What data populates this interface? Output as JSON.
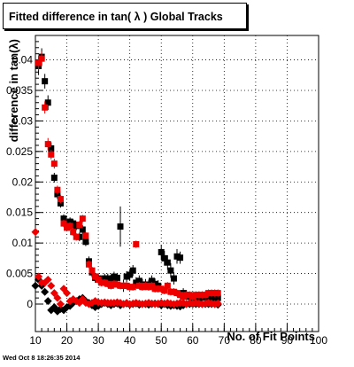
{
  "title": "Fitted difference in tan( λ )  Global Tracks",
  "timestamp": "Wed Oct  8 18:26:35 2014",
  "chart_data": {
    "type": "scatter",
    "title": "Fitted difference in tan( λ )  Global Tracks",
    "xlabel": "No. of Fit Points",
    "ylabel": "difference in tan(λ)",
    "xlim": [
      10,
      100
    ],
    "ylim": [
      -0.0045,
      0.044
    ],
    "x_ticks": [
      10,
      20,
      30,
      40,
      50,
      60,
      70,
      80,
      90,
      100
    ],
    "y_ticks": [
      0,
      0.005,
      0.01,
      0.015,
      0.02,
      0.025,
      0.03,
      0.035,
      0.04
    ],
    "y_tick_labels": [
      "0",
      "0.005",
      "0.01",
      "0.015",
      "0.02",
      "0.025",
      "0.03",
      "0.035",
      "0.04"
    ],
    "grid": true,
    "series": [
      {
        "color": "#000000",
        "marker": "square",
        "points": [
          [
            11,
            0.039,
            0.0015
          ],
          [
            12,
            0.0405,
            0.0014
          ],
          [
            13,
            0.0365,
            0.0012
          ],
          [
            14,
            0.033,
            0.0012
          ],
          [
            15,
            0.0255,
            0.001
          ],
          [
            16,
            0.0207,
            0.0008
          ],
          [
            17,
            0.018,
            0.0008
          ],
          [
            18,
            0.0165,
            0.0007
          ],
          [
            19,
            0.014,
            0.0007
          ],
          [
            20,
            0.013,
            0.0007
          ],
          [
            21,
            0.0135,
            0.0007
          ],
          [
            22,
            0.0132,
            0.0007
          ],
          [
            23,
            0.0128,
            0.0007
          ],
          [
            24,
            0.011,
            0.0007
          ],
          [
            25,
            0.0122,
            0.0007
          ],
          [
            26,
            0.0102,
            0.0007
          ],
          [
            27,
            0.007,
            0.0008
          ],
          [
            28,
            0.0052,
            0.0008
          ],
          [
            29,
            0.0043,
            0.0008
          ],
          [
            30,
            0.0042,
            0.0008
          ],
          [
            31,
            0.0038,
            0.0008
          ],
          [
            32,
            0.0042,
            0.0008
          ],
          [
            33,
            0.0042,
            0.0008
          ],
          [
            34,
            0.004,
            0.0008
          ],
          [
            35,
            0.0045,
            0.0008
          ],
          [
            36,
            0.0043,
            0.0008
          ],
          [
            37,
            0.0127,
            0.0033
          ],
          [
            38,
            0.003,
            0.001
          ],
          [
            39,
            0.0045,
            0.0009
          ],
          [
            40,
            0.0048,
            0.0009
          ],
          [
            41,
            0.0055,
            0.0009
          ],
          [
            42,
            0.0035,
            0.0009
          ],
          [
            43,
            0.0038,
            0.0009
          ],
          [
            44,
            0.0032,
            0.0009
          ],
          [
            45,
            0.0032,
            0.0009
          ],
          [
            46,
            0.0031,
            0.0009
          ],
          [
            47,
            0.0038,
            0.0009
          ],
          [
            48,
            0.0033,
            0.0009
          ],
          [
            49,
            0.003,
            0.0009
          ],
          [
            50,
            0.0085,
            0.0012
          ],
          [
            51,
            0.0075,
            0.0012
          ],
          [
            52,
            0.0068,
            0.0012
          ],
          [
            53,
            0.0055,
            0.0012
          ],
          [
            54,
            0.0042,
            0.001
          ],
          [
            55,
            0.0078,
            0.0012
          ],
          [
            56,
            0.0076,
            0.001
          ],
          [
            57,
            0.0018,
            0.0008
          ],
          [
            58,
            0.0015,
            0.0008
          ],
          [
            59,
            0.0012,
            0.0008
          ],
          [
            60,
            0.001,
            0.0008
          ],
          [
            61,
            0.0012,
            0.0008
          ],
          [
            62,
            0.001,
            0.0008
          ],
          [
            63,
            0.0012,
            0.0008
          ],
          [
            64,
            0.0011,
            0.0008
          ],
          [
            65,
            0.0012,
            0.0008
          ],
          [
            66,
            0.001,
            0.0008
          ],
          [
            67,
            0.0012,
            0.0008
          ],
          [
            68,
            0.001,
            0.0008
          ]
        ]
      },
      {
        "color": "#ee0000",
        "marker": "square",
        "points": [
          [
            11,
            0.0395,
            0.0012
          ],
          [
            12,
            0.0402,
            0.0012
          ],
          [
            13,
            0.0322,
            0.001
          ],
          [
            14,
            0.0262,
            0.001
          ],
          [
            15,
            0.0245,
            0.0008
          ],
          [
            16,
            0.023,
            0.0008
          ],
          [
            17,
            0.0187,
            0.0007
          ],
          [
            18,
            0.0172,
            0.0007
          ],
          [
            19,
            0.0132,
            0.0006
          ],
          [
            20,
            0.0125,
            0.0006
          ],
          [
            21,
            0.0128,
            0.0006
          ],
          [
            22,
            0.0118,
            0.0006
          ],
          [
            23,
            0.011,
            0.0006
          ],
          [
            24,
            0.013,
            0.0006
          ],
          [
            25,
            0.014,
            0.0006
          ],
          [
            26,
            0.0112,
            0.0006
          ],
          [
            27,
            0.0065,
            0.0006
          ],
          [
            28,
            0.0055,
            0.0006
          ],
          [
            29,
            0.0045,
            0.0006
          ],
          [
            30,
            0.004,
            0.0006
          ],
          [
            31,
            0.0035,
            0.0006
          ],
          [
            32,
            0.0035,
            0.0006
          ],
          [
            33,
            0.0033,
            0.0006
          ],
          [
            34,
            0.003,
            0.0006
          ],
          [
            35,
            0.0033,
            0.0006
          ],
          [
            36,
            0.0032,
            0.0006
          ],
          [
            37,
            0.003,
            0.0006
          ],
          [
            38,
            0.003,
            0.0006
          ],
          [
            39,
            0.003,
            0.0006
          ],
          [
            40,
            0.0028,
            0.0006
          ],
          [
            41,
            0.0028,
            0.0006
          ],
          [
            42,
            0.0098,
            0.0006
          ],
          [
            43,
            0.003,
            0.0006
          ],
          [
            44,
            0.0028,
            0.0006
          ],
          [
            45,
            0.003,
            0.0006
          ],
          [
            46,
            0.0028,
            0.0006
          ],
          [
            47,
            0.003,
            0.0006
          ],
          [
            48,
            0.0025,
            0.0006
          ],
          [
            49,
            0.0025,
            0.0006
          ],
          [
            50,
            0.0025,
            0.0006
          ],
          [
            51,
            0.0022,
            0.0006
          ],
          [
            52,
            0.003,
            0.0006
          ],
          [
            53,
            0.002,
            0.0006
          ],
          [
            54,
            0.002,
            0.0006
          ],
          [
            55,
            0.0018,
            0.0006
          ],
          [
            56,
            0.0015,
            0.0006
          ],
          [
            57,
            0.0012,
            0.0006
          ],
          [
            58,
            0.0015,
            0.0006
          ],
          [
            59,
            0.0015,
            0.0006
          ],
          [
            60,
            0.0012,
            0.0006
          ],
          [
            61,
            0.0015,
            0.0006
          ],
          [
            62,
            0.0015,
            0.0006
          ],
          [
            63,
            0.0015,
            0.0006
          ],
          [
            64,
            0.0015,
            0.0006
          ],
          [
            65,
            0.0018,
            0.0006
          ],
          [
            66,
            0.0018,
            0.0006
          ],
          [
            67,
            0.0018,
            0.0006
          ],
          [
            68,
            0.0018,
            0.0006
          ]
        ]
      },
      {
        "color": "#000000",
        "marker": "diamond",
        "points": [
          [
            10,
            0.003
          ],
          [
            11,
            0.004
          ],
          [
            12,
            0.003
          ],
          [
            13,
            0.002
          ],
          [
            14,
            0.0005
          ],
          [
            15,
            -0.001
          ],
          [
            16,
            -0.0005
          ],
          [
            17,
            -0.0012
          ],
          [
            18,
            -0.0008
          ],
          [
            19,
            -0.001
          ],
          [
            20,
            -0.0005
          ],
          [
            21,
            -0.0003
          ],
          [
            22,
            0.0002
          ],
          [
            23,
            0.0005
          ],
          [
            24,
            0.0008
          ],
          [
            25,
            0.001
          ],
          [
            26,
            0.0005
          ],
          [
            27,
            0.0002
          ],
          [
            28,
            -0.0002
          ],
          [
            29,
            -0.0005
          ],
          [
            30,
            -0.0003
          ],
          [
            31,
            0.0
          ],
          [
            32,
            0.0002
          ],
          [
            33,
            0.0
          ],
          [
            34,
            -0.0002
          ],
          [
            35,
            0.0
          ],
          [
            36,
            0.0001
          ],
          [
            37,
            -0.0002
          ],
          [
            38,
            0.0
          ],
          [
            39,
            0.0001
          ],
          [
            40,
            -0.0001
          ],
          [
            41,
            0.0
          ],
          [
            42,
            0.0001
          ],
          [
            43,
            -0.0001
          ],
          [
            44,
            0.0
          ],
          [
            45,
            0.0
          ],
          [
            46,
            -0.0001
          ],
          [
            47,
            0.0
          ],
          [
            48,
            0.0001
          ],
          [
            49,
            0.0
          ],
          [
            50,
            -0.0002
          ],
          [
            51,
            0.0
          ],
          [
            52,
            -0.0002
          ],
          [
            53,
            -0.0003
          ],
          [
            54,
            -0.0002
          ],
          [
            55,
            -0.0003
          ],
          [
            56,
            -0.0004
          ],
          [
            57,
            -0.0002
          ],
          [
            58,
            0.0
          ],
          [
            59,
            0.0
          ],
          [
            60,
            0.0
          ],
          [
            61,
            0.0
          ],
          [
            62,
            0.0
          ],
          [
            63,
            0.0
          ],
          [
            64,
            0.0
          ],
          [
            65,
            0.0
          ],
          [
            66,
            0.0
          ],
          [
            67,
            0.0
          ],
          [
            68,
            -0.0001
          ]
        ]
      },
      {
        "color": "#ee0000",
        "marker": "diamond",
        "points": [
          [
            10,
            0.0118
          ],
          [
            11,
            0.0045
          ],
          [
            12,
            0.0035
          ],
          [
            13,
            0.0035
          ],
          [
            14,
            0.004
          ],
          [
            15,
            0.003
          ],
          [
            16,
            0.0018
          ],
          [
            17,
            0.001
          ],
          [
            18,
            0.0
          ],
          [
            19,
            0.0025
          ],
          [
            20,
            0.0018
          ],
          [
            21,
            0.0005
          ],
          [
            22,
            0.0008
          ],
          [
            23,
            0.0005
          ],
          [
            24,
            0.0002
          ],
          [
            25,
            0.0008
          ],
          [
            26,
            0.0002
          ],
          [
            27,
            0.0
          ],
          [
            28,
            0.0002
          ],
          [
            29,
            0.0005
          ],
          [
            30,
            0.0003
          ],
          [
            31,
            0.0002
          ],
          [
            32,
            0.0003
          ],
          [
            33,
            0.0002
          ],
          [
            34,
            0.0002
          ],
          [
            35,
            0.0002
          ],
          [
            36,
            0.0003
          ],
          [
            37,
            0.0002
          ],
          [
            38,
            0.0
          ],
          [
            39,
            0.0002
          ],
          [
            40,
            0.0
          ],
          [
            41,
            0.0001
          ],
          [
            42,
            0.0002
          ],
          [
            43,
            0.0001
          ],
          [
            44,
            0.0
          ],
          [
            45,
            0.0001
          ],
          [
            46,
            0.0002
          ],
          [
            47,
            0.0001
          ],
          [
            48,
            0.0
          ],
          [
            49,
            0.0001
          ],
          [
            50,
            0.0002
          ],
          [
            51,
            0.0001
          ],
          [
            52,
            0.0002
          ],
          [
            53,
            0.0001
          ],
          [
            54,
            0.0
          ],
          [
            55,
            0.0001
          ],
          [
            56,
            0.0002
          ],
          [
            57,
            0.0002
          ],
          [
            58,
            0.0
          ],
          [
            59,
            0.0002
          ],
          [
            60,
            0.0001
          ],
          [
            61,
            0.0002
          ],
          [
            62,
            0.0001
          ],
          [
            63,
            0.0
          ],
          [
            64,
            0.0001
          ],
          [
            65,
            0.0002
          ],
          [
            66,
            0.0001
          ],
          [
            67,
            0.0
          ],
          [
            68,
            0.0001
          ]
        ]
      }
    ]
  }
}
